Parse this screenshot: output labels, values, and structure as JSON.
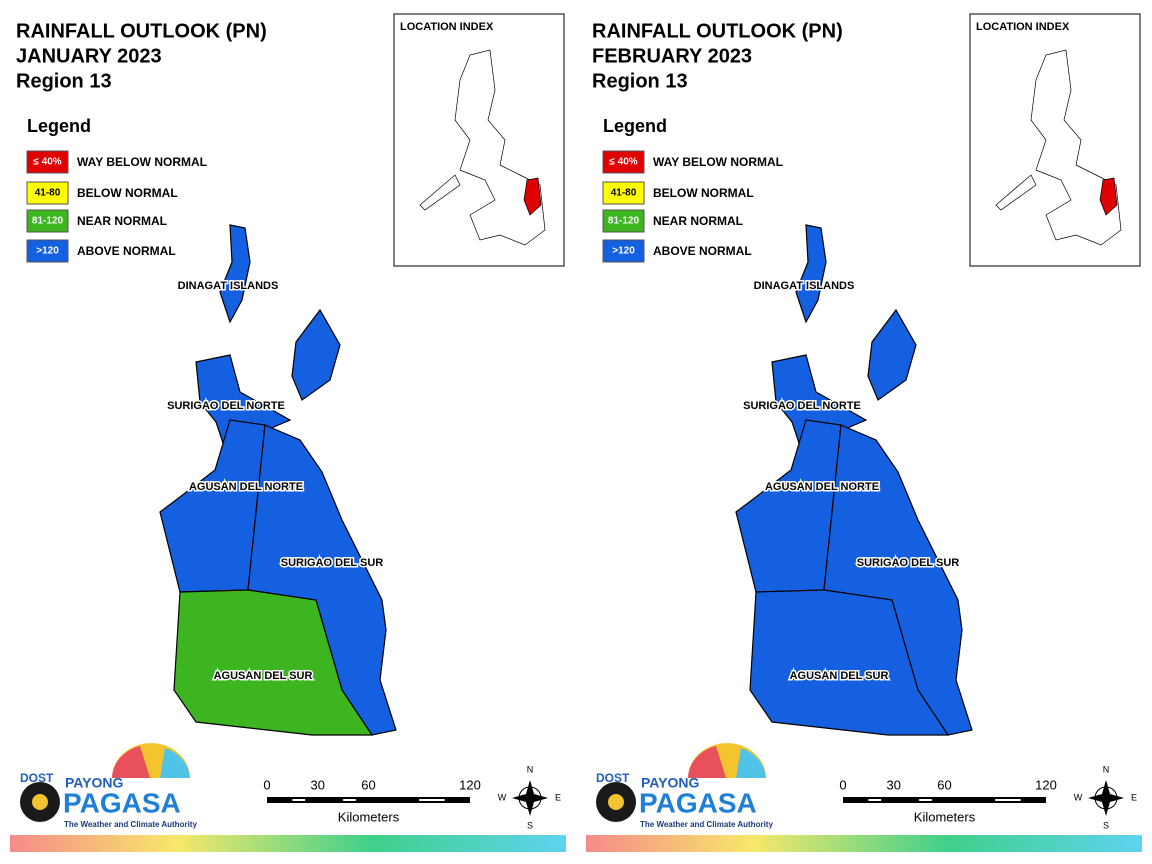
{
  "panels": [
    {
      "title": [
        "RAINFALL OUTLOOK (PN)",
        "JANUARY 2023",
        "Region 13"
      ],
      "location_index": "LOCATION INDEX",
      "legend": {
        "title": "Legend",
        "items": [
          {
            "swatch": "≤ 40%",
            "label": "WAY BELOW NORMAL",
            "color": "#e00000"
          },
          {
            "swatch": "41-80",
            "label": "BELOW NORMAL",
            "color": "#ffff00"
          },
          {
            "swatch": "81-120",
            "label": "NEAR NORMAL",
            "color": "#3cb521"
          },
          {
            "swatch": ">120",
            "label": "ABOVE NORMAL",
            "color": "#1560e0"
          }
        ]
      },
      "provinces": [
        {
          "name": "DINAGAT ISLANDS",
          "color": "#1560e0"
        },
        {
          "name": "SURIGAO DEL NORTE",
          "color": "#1560e0"
        },
        {
          "name": "AGUSAN DEL NORTE",
          "color": "#1560e0"
        },
        {
          "name": "SURIGAO DEL SUR",
          "color": "#1560e0"
        },
        {
          "name": "AGUSAN DEL SUR",
          "color": "#3cb521"
        }
      ],
      "scale": {
        "ticks": [
          0,
          30,
          60,
          120
        ],
        "unit": "Kilometers"
      },
      "compass": [
        "N",
        "E",
        "S",
        "W"
      ],
      "logo": {
        "dost": "DOST",
        "payong": "PAYONG",
        "pagasa": "PAGASA",
        "tagline": "The Weather and Climate Authority"
      }
    },
    {
      "title": [
        "RAINFALL OUTLOOK (PN)",
        "FEBRUARY 2023",
        "Region 13"
      ],
      "location_index": "LOCATION INDEX",
      "legend": {
        "title": "Legend",
        "items": [
          {
            "swatch": "≤ 40%",
            "label": "WAY BELOW NORMAL",
            "color": "#e00000"
          },
          {
            "swatch": "41-80",
            "label": "BELOW NORMAL",
            "color": "#ffff00"
          },
          {
            "swatch": "81-120",
            "label": "NEAR NORMAL",
            "color": "#3cb521"
          },
          {
            "swatch": ">120",
            "label": "ABOVE NORMAL",
            "color": "#1560e0"
          }
        ]
      },
      "provinces": [
        {
          "name": "DINAGAT ISLANDS",
          "color": "#1560e0"
        },
        {
          "name": "SURIGAO DEL NORTE",
          "color": "#1560e0"
        },
        {
          "name": "AGUSAN DEL NORTE",
          "color": "#1560e0"
        },
        {
          "name": "SURIGAO DEL SUR",
          "color": "#1560e0"
        },
        {
          "name": "AGUSAN DEL SUR",
          "color": "#1560e0"
        }
      ],
      "scale": {
        "ticks": [
          0,
          30,
          60,
          120
        ],
        "unit": "Kilometers"
      },
      "compass": [
        "N",
        "E",
        "S",
        "W"
      ],
      "logo": {
        "dost": "DOST",
        "payong": "PAYONG",
        "pagasa": "PAGASA",
        "tagline": "The Weather and Climate Authority"
      }
    }
  ]
}
